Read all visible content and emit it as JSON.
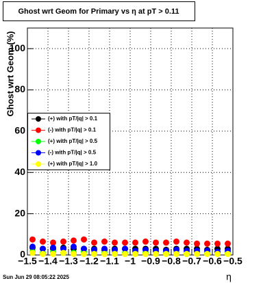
{
  "chart_data": {
    "type": "scatter",
    "title": "Ghost wrt Geom for Primary vs η at pT > 0.11",
    "y_label": "Ghost wrt Geom (%)",
    "x_label": "η",
    "timestamp": "Sun Jun 29 08:05:22 2025",
    "x": [
      -1.475,
      -1.425,
      -1.375,
      -1.325,
      -1.275,
      -1.225,
      -1.175,
      -1.125,
      -1.075,
      -1.025,
      -0.975,
      -0.925,
      -0.875,
      -0.825,
      -0.775,
      -0.725,
      -0.675,
      -0.625,
      -0.575,
      -0.525
    ],
    "series": [
      {
        "name": "(+) with pT/|q| > 0.1",
        "color": "#000000",
        "values": [
          3.5,
          3,
          3,
          3.5,
          3,
          3,
          3,
          2.5,
          3,
          3,
          3,
          3,
          3,
          2.5,
          3,
          3,
          3,
          2.5,
          3,
          3
        ]
      },
      {
        "name": "(-) with pT/|q| > 0.1",
        "color": "#ff0000",
        "values": [
          7.5,
          6.5,
          6,
          6.5,
          7,
          7.5,
          6,
          6.5,
          6,
          6,
          6,
          6.5,
          6,
          6,
          6.5,
          6,
          5.5,
          5.5,
          5.5,
          5.5
        ]
      },
      {
        "name": "(+) with pT/|q| > 0.5",
        "color": "#00ff00",
        "values": [
          1.5,
          1,
          1.5,
          1,
          1,
          1.5,
          1,
          1,
          1,
          1,
          1,
          1,
          1,
          1,
          1,
          0.5,
          1,
          1,
          1,
          1
        ]
      },
      {
        "name": "(-) with pT/|q| > 0.5",
        "color": "#0000ff",
        "values": [
          4,
          3,
          3.5,
          3,
          4,
          3,
          2.5,
          3,
          2.5,
          3,
          2,
          2.5,
          2,
          2,
          2.5,
          2,
          2,
          2,
          1.5,
          2
        ]
      },
      {
        "name": "(+) with pT/|q| > 1.0",
        "color": "#ffff00",
        "values": [
          1,
          0.5,
          0.5,
          1,
          0.5,
          0.5,
          0.5,
          0.5,
          0.5,
          0.5,
          0.5,
          0.5,
          0.5,
          0.5,
          0.5,
          0.5,
          0.5,
          0.5,
          0.5,
          0.5
        ]
      }
    ],
    "xlim": [
      -1.5,
      -0.5
    ],
    "xticks": [
      {
        "value": -1.5,
        "label": "−1.5"
      },
      {
        "value": -1.4,
        "label": "−1.4"
      },
      {
        "value": -1.3,
        "label": "−1.3"
      },
      {
        "value": -1.2,
        "label": "−1.2"
      },
      {
        "value": -1.1,
        "label": "−1.1"
      },
      {
        "value": -1,
        "label": "−1"
      },
      {
        "value": -0.9,
        "label": "−0.9"
      },
      {
        "value": -0.8,
        "label": "−0.8"
      },
      {
        "value": -0.7,
        "label": "−0.7"
      },
      {
        "value": -0.6,
        "label": "−0.6"
      },
      {
        "value": -0.5,
        "label": "−0.5"
      }
    ],
    "ylim": [
      0,
      110
    ],
    "yticks": [
      0,
      20,
      40,
      60,
      80,
      100
    ],
    "grid": true
  }
}
